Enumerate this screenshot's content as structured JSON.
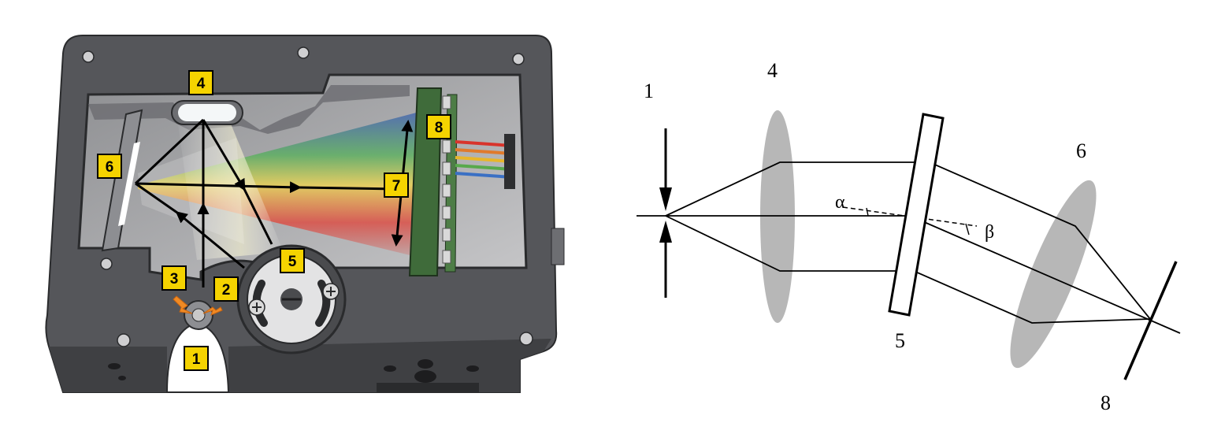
{
  "left_figure": {
    "callouts": [
      {
        "id": "c1",
        "text": "1"
      },
      {
        "id": "c2",
        "text": "2"
      },
      {
        "id": "c3",
        "text": "3"
      },
      {
        "id": "c4",
        "text": "4"
      },
      {
        "id": "c5",
        "text": "5"
      },
      {
        "id": "c6",
        "text": "6"
      },
      {
        "id": "c7",
        "text": "7"
      },
      {
        "id": "c8",
        "text": "8"
      }
    ],
    "colors": {
      "housing": "#55565a",
      "housing_dark": "#3a3b3e",
      "cavity": "#b8b8ba",
      "callout_fill": "#f5d300",
      "arrow_orange": "#f08a24",
      "spectrum_red": "#e0443a",
      "spectrum_green": "#56b05a",
      "spectrum_blue": "#3b5bb5",
      "spectrum_yellow": "#f1d54c",
      "board_green": "#3f6b3a"
    }
  },
  "right_figure": {
    "labels": [
      {
        "id": "r1",
        "text": "1"
      },
      {
        "id": "r4",
        "text": "4"
      },
      {
        "id": "r5",
        "text": "5"
      },
      {
        "id": "r6",
        "text": "6"
      },
      {
        "id": "r8",
        "text": "8"
      }
    ],
    "angles": {
      "alpha": "α",
      "beta": "β"
    },
    "colors": {
      "lens": "#b7b7b7",
      "line": "#000000"
    }
  }
}
